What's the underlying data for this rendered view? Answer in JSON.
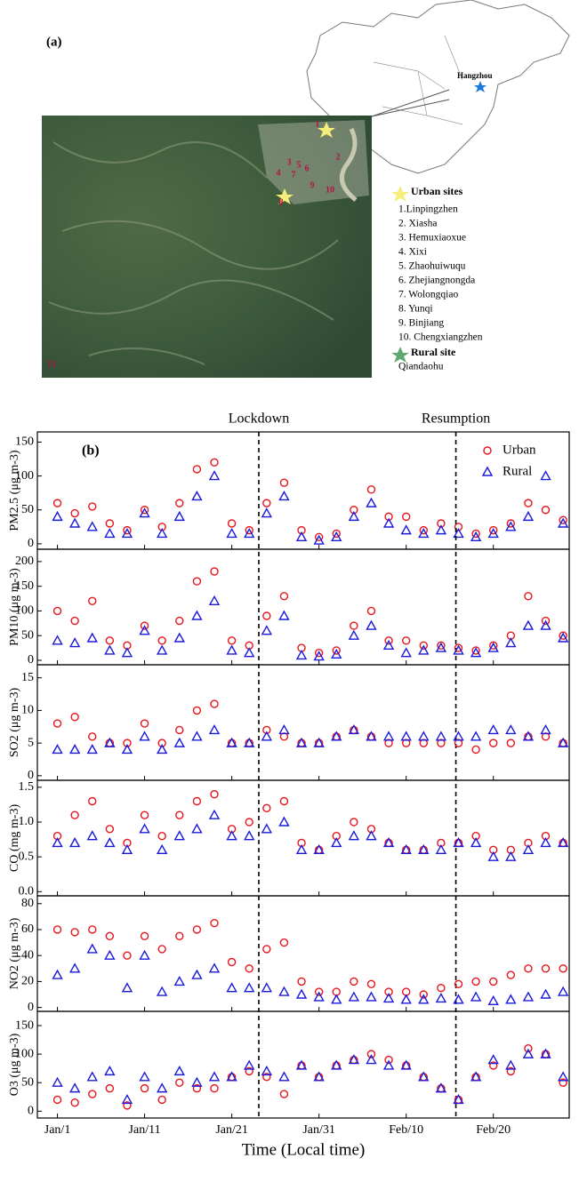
{
  "map": {
    "panel_label": "(a)",
    "city_label": "Hangzhou",
    "site_numbers": [
      "1",
      "2",
      "3",
      "4",
      "5",
      "6",
      "7",
      "8",
      "9",
      "10",
      "11"
    ],
    "urban_title": "Urban sites",
    "urban_sites": [
      "1.Linpingzhen",
      "2. Xiasha",
      "3. Hemuxiaoxue",
      "4. Xixi",
      "5. Zhaohuiwuqu",
      "6. Zhejiangnongda",
      "7. Wolongqiao",
      "8. Yunqi",
      "9. Binjiang",
      "10. Chengxiangzhen"
    ],
    "rural_title": "Rural site",
    "rural_sites": [
      "Qiandaohu"
    ]
  },
  "chart_data": [
    {
      "type": "scatter",
      "panel_label": "(b)",
      "ylabel": "PM2.5 (μg m-3)",
      "legend": "upper right",
      "annotations": [
        {
          "text": "Lockdown",
          "x": 23.1
        },
        {
          "text": "Resumption",
          "x": 45.7
        }
      ],
      "xlim": [
        -2.3,
        58.7
      ],
      "ylim": [
        -8,
        165
      ],
      "yticks": [
        0,
        50,
        100,
        150
      ],
      "x": [
        0,
        2,
        4,
        6,
        8,
        10,
        12,
        14,
        16,
        18,
        20,
        22,
        24,
        26,
        28,
        30,
        32,
        34,
        36,
        38,
        40,
        42,
        44,
        46,
        48,
        50,
        52,
        54,
        56,
        58
      ],
      "series": [
        {
          "name": "Urban",
          "color": "#e8141b",
          "marker": "circle",
          "values": [
            60,
            45,
            55,
            30,
            20,
            50,
            25,
            60,
            110,
            120,
            30,
            20,
            60,
            90,
            20,
            10,
            15,
            50,
            80,
            40,
            40,
            20,
            30,
            25,
            15,
            20,
            30,
            60,
            50,
            35
          ]
        },
        {
          "name": "Rural",
          "color": "#1a1adb",
          "marker": "triangle",
          "values": [
            40,
            30,
            25,
            15,
            15,
            45,
            15,
            40,
            70,
            100,
            15,
            15,
            45,
            70,
            10,
            5,
            10,
            40,
            60,
            30,
            20,
            15,
            20,
            15,
            10,
            15,
            25,
            40,
            100,
            30
          ]
        }
      ]
    },
    {
      "type": "scatter",
      "ylabel": "PM10 (μg m-3)",
      "xlim": [
        -2.3,
        58.7
      ],
      "ylim": [
        -9,
        225
      ],
      "yticks": [
        0,
        50,
        100,
        150,
        200
      ],
      "x": [
        0,
        2,
        4,
        6,
        8,
        10,
        12,
        14,
        16,
        18,
        20,
        22,
        24,
        26,
        28,
        30,
        32,
        34,
        36,
        38,
        40,
        42,
        44,
        46,
        48,
        50,
        52,
        54,
        56,
        58
      ],
      "series": [
        {
          "name": "Urban",
          "color": "#e8141b",
          "marker": "circle",
          "values": [
            100,
            80,
            120,
            40,
            30,
            70,
            40,
            80,
            160,
            180,
            40,
            30,
            90,
            130,
            25,
            15,
            20,
            70,
            100,
            40,
            40,
            30,
            30,
            25,
            20,
            30,
            50,
            130,
            80,
            50
          ]
        },
        {
          "name": "Rural",
          "color": "#1a1adb",
          "marker": "triangle",
          "values": [
            40,
            35,
            45,
            20,
            15,
            60,
            20,
            45,
            90,
            120,
            20,
            15,
            60,
            90,
            10,
            8,
            12,
            50,
            70,
            30,
            15,
            20,
            25,
            20,
            15,
            25,
            35,
            70,
            70,
            45
          ]
        }
      ]
    },
    {
      "type": "scatter",
      "ylabel": "SO2 (μg m-3)",
      "xlim": [
        -2.3,
        58.7
      ],
      "ylim": [
        -0.7,
        17
      ],
      "yticks": [
        0,
        5,
        10,
        15
      ],
      "x": [
        0,
        2,
        4,
        6,
        8,
        10,
        12,
        14,
        16,
        18,
        20,
        22,
        24,
        26,
        28,
        30,
        32,
        34,
        36,
        38,
        40,
        42,
        44,
        46,
        48,
        50,
        52,
        54,
        56,
        58
      ],
      "series": [
        {
          "name": "Urban",
          "color": "#e8141b",
          "marker": "circle",
          "values": [
            8,
            9,
            6,
            5,
            5,
            8,
            5,
            7,
            10,
            11,
            5,
            5,
            7,
            6,
            5,
            5,
            6,
            7,
            6,
            5,
            5,
            5,
            5,
            5,
            4,
            5,
            5,
            6,
            6,
            5
          ]
        },
        {
          "name": "Rural",
          "color": "#1a1adb",
          "marker": "triangle",
          "values": [
            4,
            4,
            4,
            5,
            4,
            6,
            4,
            5,
            6,
            7,
            5,
            5,
            6,
            7,
            5,
            5,
            6,
            7,
            6,
            6,
            6,
            6,
            6,
            6,
            6,
            7,
            7,
            6,
            7,
            5
          ]
        }
      ]
    },
    {
      "type": "scatter",
      "ylabel": "CO (mg m-3)",
      "xlim": [
        -2.3,
        58.7
      ],
      "ylim": [
        -0.06,
        1.6
      ],
      "yticks": [
        {
          "value": 0,
          "label": "0.0"
        },
        0.5,
        {
          "value": 1,
          "label": "1.0"
        },
        1.5
      ],
      "x": [
        0,
        2,
        4,
        6,
        8,
        10,
        12,
        14,
        16,
        18,
        20,
        22,
        24,
        26,
        28,
        30,
        32,
        34,
        36,
        38,
        40,
        42,
        44,
        46,
        48,
        50,
        52,
        54,
        56,
        58
      ],
      "series": [
        {
          "name": "Urban",
          "color": "#e8141b",
          "marker": "circle",
          "values": [
            0.8,
            1.1,
            1.3,
            0.9,
            0.7,
            1.1,
            0.8,
            1.1,
            1.3,
            1.4,
            0.9,
            1.0,
            1.2,
            1.3,
            0.7,
            0.6,
            0.8,
            1.0,
            0.9,
            0.7,
            0.6,
            0.6,
            0.7,
            0.7,
            0.8,
            0.6,
            0.6,
            0.7,
            0.8,
            0.7
          ]
        },
        {
          "name": "Rural",
          "color": "#1a1adb",
          "marker": "triangle",
          "values": [
            0.7,
            0.7,
            0.8,
            0.7,
            0.6,
            0.9,
            0.6,
            0.8,
            0.9,
            1.1,
            0.8,
            0.8,
            0.9,
            1.0,
            0.6,
            0.6,
            0.7,
            0.8,
            0.8,
            0.7,
            0.6,
            0.6,
            0.6,
            0.7,
            0.7,
            0.5,
            0.5,
            0.6,
            0.7,
            0.7
          ]
        }
      ]
    },
    {
      "type": "scatter",
      "ylabel": "NO2 (μg m-3)",
      "xlim": [
        -2.3,
        58.7
      ],
      "ylim": [
        -3,
        86
      ],
      "yticks": [
        0,
        20,
        40,
        60,
        80
      ],
      "x": [
        0,
        2,
        4,
        6,
        8,
        10,
        12,
        14,
        16,
        18,
        20,
        22,
        24,
        26,
        28,
        30,
        32,
        34,
        36,
        38,
        40,
        42,
        44,
        46,
        48,
        50,
        52,
        54,
        56,
        58
      ],
      "series": [
        {
          "name": "Urban",
          "color": "#e8141b",
          "marker": "circle",
          "values": [
            60,
            58,
            60,
            55,
            40,
            55,
            45,
            55,
            60,
            65,
            35,
            30,
            45,
            50,
            20,
            12,
            12,
            20,
            18,
            12,
            12,
            10,
            15,
            18,
            20,
            20,
            25,
            30,
            30,
            30
          ]
        },
        {
          "name": "Rural",
          "color": "#1a1adb",
          "marker": "triangle",
          "values": [
            25,
            30,
            45,
            40,
            15,
            40,
            12,
            20,
            25,
            30,
            15,
            15,
            15,
            12,
            10,
            8,
            6,
            8,
            8,
            7,
            6,
            6,
            7,
            6,
            8,
            5,
            6,
            8,
            10,
            12
          ]
        }
      ]
    },
    {
      "type": "scatter",
      "ylabel": "O3 (μg m-3)",
      "xlabel": "Time (Local time)",
      "xlim": [
        -2.3,
        58.7
      ],
      "ylim": [
        -12,
        175
      ],
      "yticks": [
        0,
        50,
        100,
        150
      ],
      "xticks": [
        {
          "value": 0,
          "label": "Jan/1"
        },
        {
          "value": 10,
          "label": "Jan/11"
        },
        {
          "value": 20,
          "label": "Jan/21"
        },
        {
          "value": 30,
          "label": "Jan/31"
        },
        {
          "value": 40,
          "label": "Feb/10"
        },
        {
          "value": 50,
          "label": "Feb/20"
        }
      ],
      "x": [
        0,
        2,
        4,
        6,
        8,
        10,
        12,
        14,
        16,
        18,
        20,
        22,
        24,
        26,
        28,
        30,
        32,
        34,
        36,
        38,
        40,
        42,
        44,
        46,
        48,
        50,
        52,
        54,
        56,
        58
      ],
      "series": [
        {
          "name": "Urban",
          "color": "#e8141b",
          "marker": "circle",
          "values": [
            20,
            15,
            30,
            40,
            10,
            40,
            20,
            50,
            40,
            40,
            60,
            70,
            60,
            30,
            80,
            60,
            80,
            90,
            100,
            90,
            80,
            60,
            40,
            20,
            60,
            80,
            70,
            110,
            100,
            50
          ]
        },
        {
          "name": "Rural",
          "color": "#1a1adb",
          "marker": "triangle",
          "values": [
            50,
            40,
            60,
            70,
            20,
            60,
            40,
            70,
            50,
            60,
            60,
            80,
            70,
            60,
            80,
            60,
            80,
            90,
            90,
            80,
            80,
            60,
            40,
            20,
            60,
            90,
            80,
            100,
            100,
            60
          ]
        }
      ]
    }
  ]
}
